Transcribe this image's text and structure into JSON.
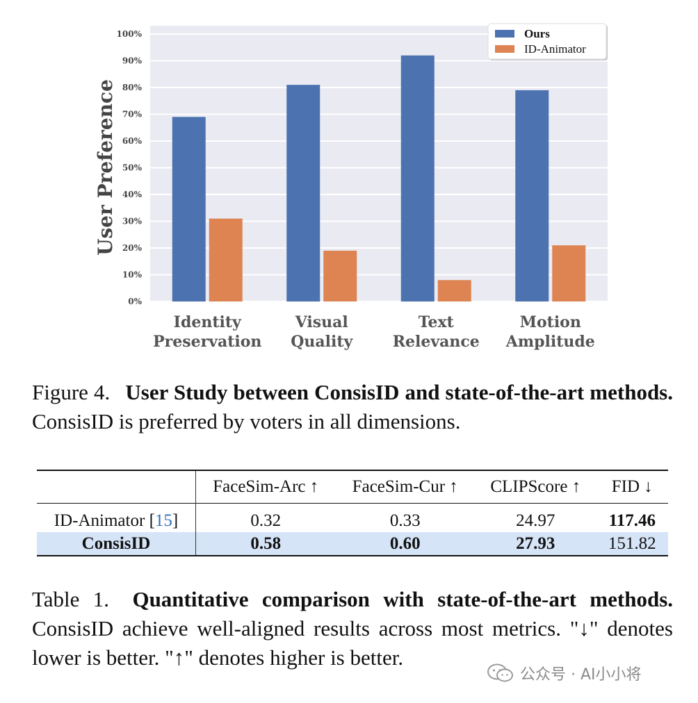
{
  "chart_data": {
    "type": "bar",
    "ylabel": "User Preference",
    "xlabel": "",
    "ylim": [
      0,
      100
    ],
    "yticks": [
      "0%",
      "10%",
      "20%",
      "30%",
      "40%",
      "50%",
      "60%",
      "70%",
      "80%",
      "90%",
      "100%"
    ],
    "categories": [
      [
        "Identity",
        "Preservation"
      ],
      [
        "Visual",
        "Quality"
      ],
      [
        "Text",
        "Relevance"
      ],
      [
        "Motion",
        "Amplitude"
      ]
    ],
    "series": [
      {
        "name": "Ours",
        "color": "#4c72b0",
        "values": [
          69,
          81,
          92,
          79
        ]
      },
      {
        "name": "ID-Animator",
        "color": "#dd8452",
        "values": [
          31,
          19,
          8,
          21
        ]
      }
    ],
    "grid": true,
    "legend": "top-right"
  },
  "figure_caption": {
    "label": "Figure 4.",
    "bold": "User Study between ConsisID and state-of-the-art methods.",
    "text": "ConsisID is preferred by voters in all dimensions."
  },
  "table": {
    "headers": [
      "",
      "FaceSim-Arc ↑",
      "FaceSim-Cur ↑",
      "CLIPScore ↑",
      "FID ↓"
    ],
    "rows": [
      {
        "method": "ID-Animator",
        "cite": "15",
        "values": [
          "0.32",
          "0.33",
          "24.97",
          "117.46"
        ]
      },
      {
        "method": "ConsisID",
        "values": [
          "0.58",
          "0.60",
          "27.93",
          "151.82"
        ]
      }
    ]
  },
  "table_caption": {
    "label": "Table 1.",
    "bold": "Quantitative comparison with state-of-the-art methods.",
    "text": "ConsisID achieve well-aligned results across most metrics. \"↓\" denotes lower is better. \"↑\" denotes higher is better."
  },
  "watermark": {
    "text": "公众号 · AI小小将",
    "icon": "wechat-icon"
  }
}
